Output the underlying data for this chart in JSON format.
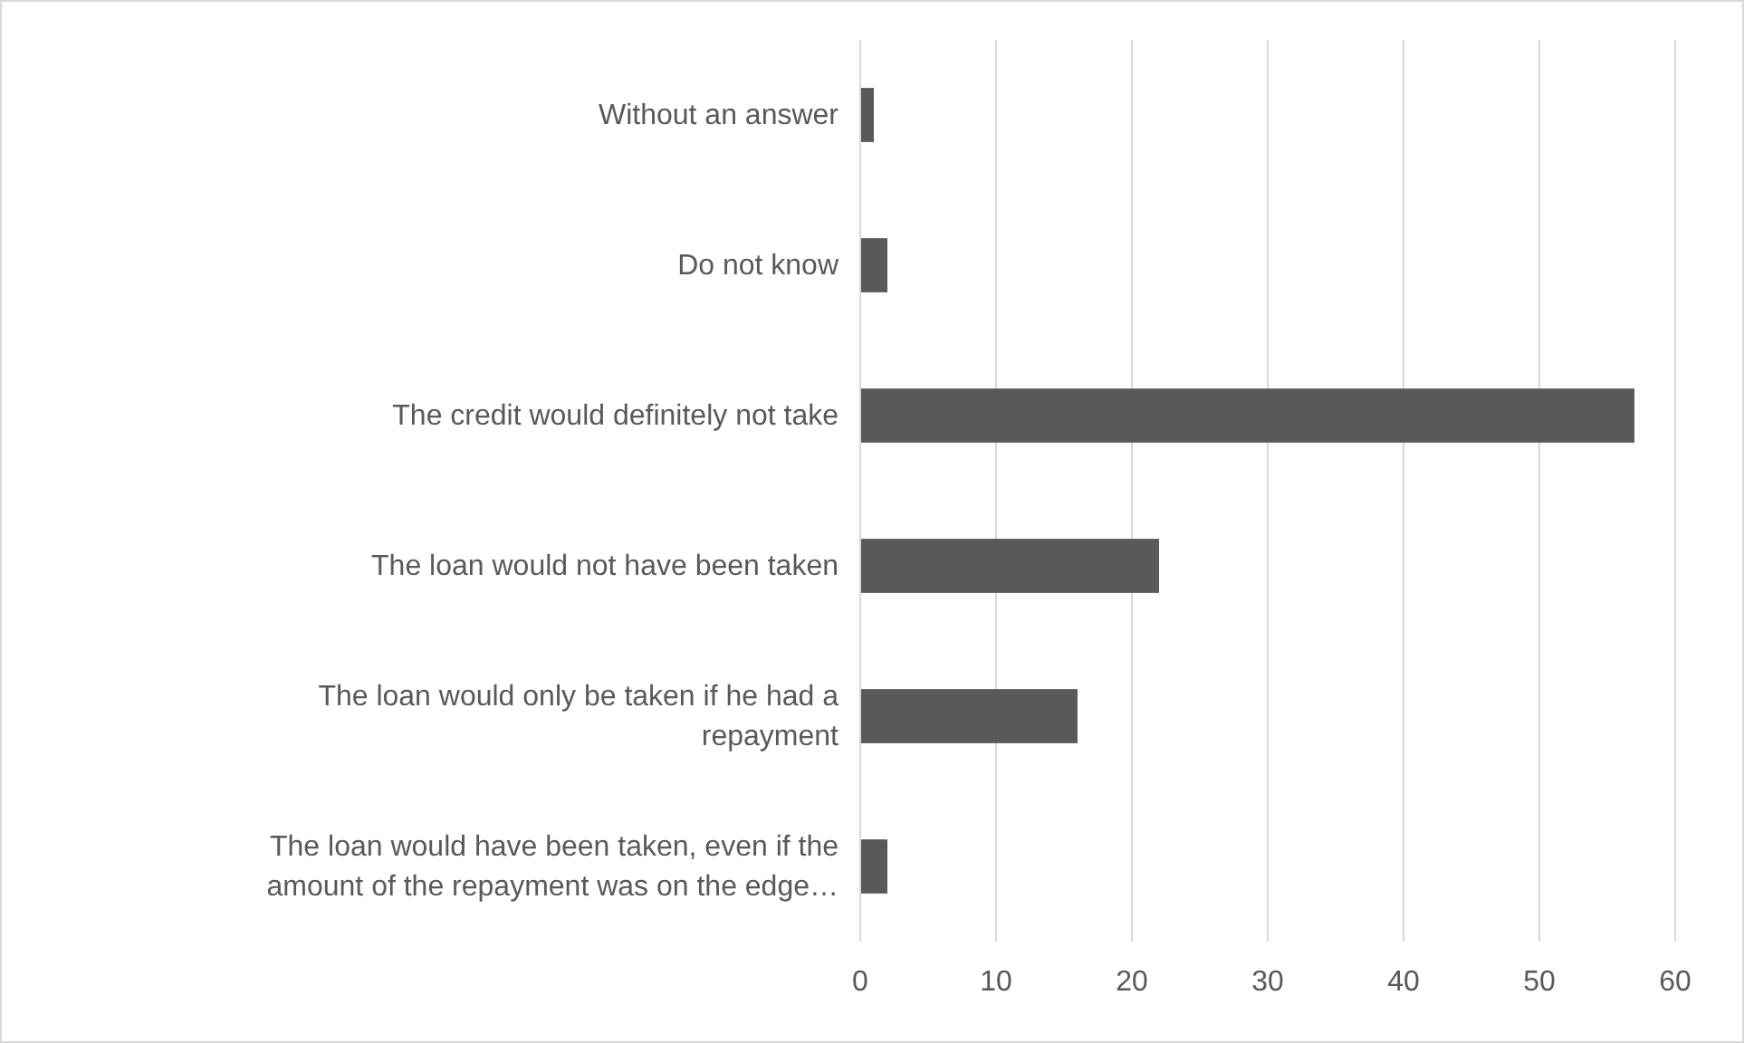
{
  "chart_data": {
    "type": "bar",
    "orientation": "horizontal",
    "categories": [
      "Without an answer",
      "Do not know",
      "The credit would definitely not take",
      "The loan would not have been taken",
      "The loan would only be taken if he had a repayment",
      "The loan would have been taken, even if the amount of the repayment was on the edge…"
    ],
    "values": [
      1,
      2,
      57,
      22,
      16,
      2
    ],
    "color": "#595959",
    "xlim": [
      0,
      60
    ],
    "xticks": [
      0,
      10,
      20,
      30,
      40,
      50,
      60
    ],
    "grid": "x"
  }
}
